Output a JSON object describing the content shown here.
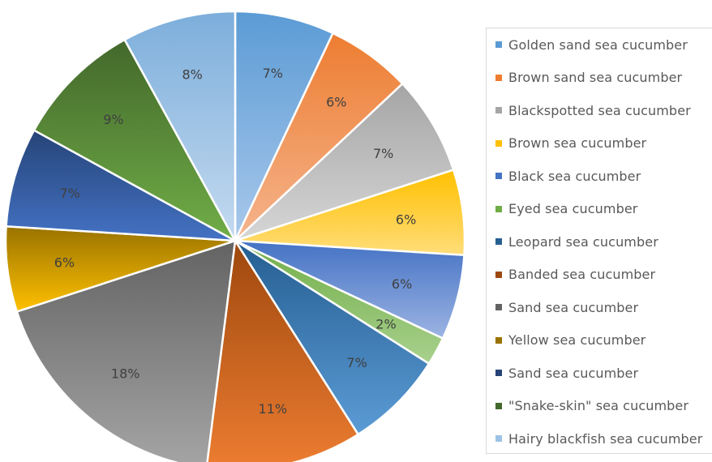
{
  "chart_data": {
    "type": "pie",
    "title": "",
    "legend_position": "right",
    "start": "top, clockwise",
    "slices": [
      {
        "label": "Golden sand sea cucumber",
        "value": 7,
        "display": "7%",
        "color": "#5b9bd5",
        "gradient": [
          "#5b9bd5",
          "#a9c8eb"
        ]
      },
      {
        "label": "Brown sand sea cucumber",
        "value": 6,
        "display": "6%",
        "color": "#ed7d31",
        "gradient": [
          "#ed7d31",
          "#f5b48d"
        ]
      },
      {
        "label": "Blackspotted sea cucumber",
        "value": 7,
        "display": "7%",
        "color": "#a5a5a5",
        "gradient": [
          "#a5a5a5",
          "#d6d6d6"
        ]
      },
      {
        "label": "Brown sea cucumber",
        "value": 6,
        "display": "6%",
        "color": "#ffc000",
        "gradient": [
          "#ffc000",
          "#ffdd7a"
        ]
      },
      {
        "label": "Black sea cucumber",
        "value": 6,
        "display": "6%",
        "color": "#4472c4",
        "gradient": [
          "#4472c4",
          "#9db4e3"
        ]
      },
      {
        "label": "Eyed sea cucumber",
        "value": 2,
        "display": "2%",
        "color": "#70ad47",
        "gradient": [
          "#70ad47",
          "#a9d18e"
        ]
      },
      {
        "label": "Leopard sea cucumber",
        "value": 7,
        "display": "7%",
        "color": "#255e91",
        "gradient": [
          "#255e91",
          "#5b9bd5"
        ]
      },
      {
        "label": "Banded sea cucumber",
        "value": 11,
        "display": "11%",
        "color": "#9e480e",
        "gradient": [
          "#9e480e",
          "#ed7d31"
        ]
      },
      {
        "label": "Sand sea cucumber",
        "value": 18,
        "display": "18%",
        "color": "#636363",
        "gradient": [
          "#636363",
          "#a5a5a5"
        ]
      },
      {
        "label": "Yellow sea cucumber",
        "value": 6,
        "display": "6%",
        "color": "#997300",
        "gradient": [
          "#997300",
          "#ffc000"
        ]
      },
      {
        "label": "Sand sea cucumber",
        "value": 7,
        "display": "7%",
        "color": "#264478",
        "gradient": [
          "#264478",
          "#4472c4"
        ]
      },
      {
        "label": "\"Snake-skin\" sea cucumber",
        "value": 9,
        "display": "9%",
        "color": "#43682b",
        "gradient": [
          "#43682b",
          "#70ad47"
        ]
      },
      {
        "label": "Hairy blackfish sea cucumber",
        "value": 8,
        "display": "8%",
        "color": "#9dc3e6",
        "gradient": [
          "#7caedb",
          "#c5daf0"
        ]
      }
    ]
  }
}
